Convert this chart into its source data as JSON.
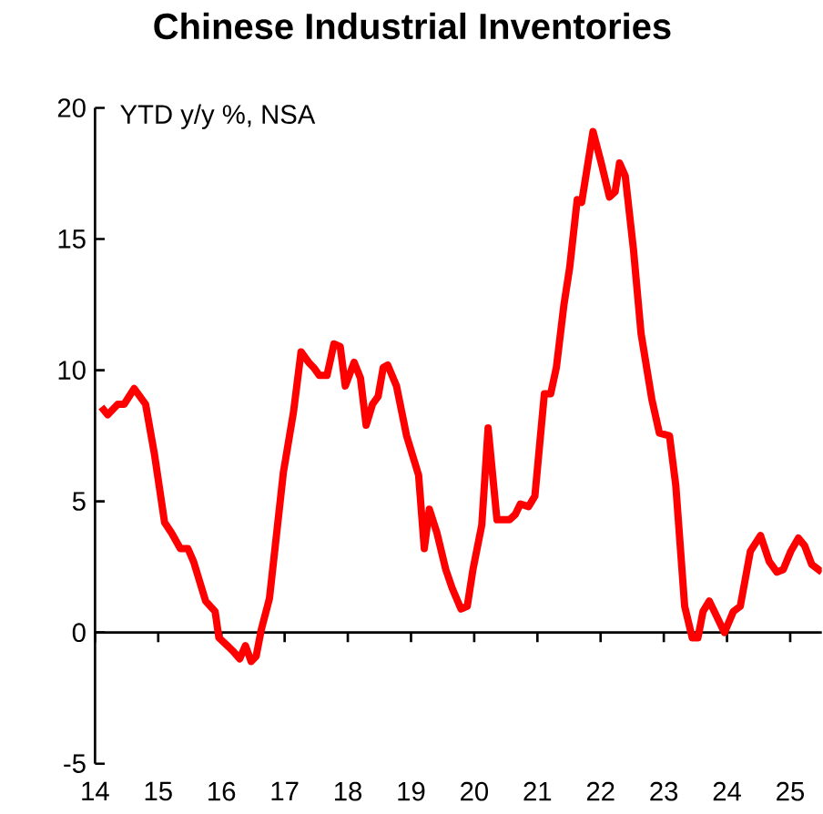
{
  "chart_data": {
    "type": "line",
    "title": "Chinese Industrial Inventories",
    "annotations": [
      "YTD y/y %, NSA"
    ],
    "xlim": [
      14,
      25.5
    ],
    "xticks": [
      14,
      15,
      16,
      17,
      18,
      19,
      20,
      21,
      22,
      23,
      24,
      25
    ],
    "ylim": [
      -5,
      20
    ],
    "yticks": [
      -5,
      0,
      5,
      10,
      15,
      20
    ],
    "marker": "none",
    "line_style": "solid",
    "series": [
      {
        "color": "#ff0000",
        "x": [
          14.1,
          14.2,
          14.36,
          14.46,
          14.62,
          14.8,
          14.94,
          15.1,
          15.21,
          15.35,
          15.47,
          15.56,
          15.75,
          15.9,
          15.96,
          16.18,
          16.29,
          16.38,
          16.47,
          16.55,
          16.63,
          16.76,
          16.98,
          17.14,
          17.26,
          17.38,
          17.46,
          17.55,
          17.67,
          17.78,
          17.88,
          17.96,
          18.1,
          18.2,
          18.29,
          18.39,
          18.48,
          18.56,
          18.63,
          18.77,
          18.93,
          19.12,
          19.21,
          19.29,
          19.41,
          19.55,
          19.65,
          19.79,
          19.89,
          19.98,
          20.12,
          20.22,
          20.36,
          20.56,
          20.65,
          20.73,
          20.86,
          20.96,
          21.11,
          21.21,
          21.3,
          21.42,
          21.51,
          21.63,
          21.7,
          21.88,
          22.01,
          22.14,
          22.23,
          22.3,
          22.39,
          22.52,
          22.64,
          22.81,
          22.93,
          23.09,
          23.19,
          23.33,
          23.45,
          23.54,
          23.62,
          23.72,
          23.86,
          23.96,
          24.1,
          24.21,
          24.37,
          24.53,
          24.67,
          24.79,
          24.89,
          25.01,
          25.13,
          25.23,
          25.34,
          25.5
        ],
        "values": [
          8.6,
          8.3,
          8.7,
          8.7,
          9.3,
          8.7,
          6.8,
          4.2,
          3.8,
          3.2,
          3.2,
          2.7,
          1.2,
          0.8,
          -0.2,
          -0.7,
          -1.0,
          -0.5,
          -1.1,
          -0.9,
          0.1,
          1.3,
          6.1,
          8.4,
          10.7,
          10.3,
          10.1,
          9.8,
          9.8,
          11.0,
          10.9,
          9.4,
          10.3,
          9.7,
          7.9,
          8.7,
          9.0,
          10.1,
          10.2,
          9.4,
          7.5,
          6.0,
          3.2,
          4.7,
          3.8,
          2.4,
          1.7,
          0.9,
          1.0,
          2.4,
          4.1,
          7.8,
          4.3,
          4.3,
          4.5,
          4.9,
          4.8,
          5.2,
          9.1,
          9.1,
          10.1,
          12.5,
          13.9,
          16.5,
          16.4,
          19.1,
          17.9,
          16.6,
          16.8,
          17.9,
          17.4,
          14.6,
          11.4,
          8.9,
          7.6,
          7.5,
          5.6,
          1.0,
          -0.2,
          -0.2,
          0.8,
          1.2,
          0.5,
          0.0,
          0.8,
          1.0,
          3.1,
          3.7,
          2.7,
          2.3,
          2.4,
          3.1,
          3.6,
          3.3,
          2.6,
          2.3
        ]
      }
    ]
  }
}
